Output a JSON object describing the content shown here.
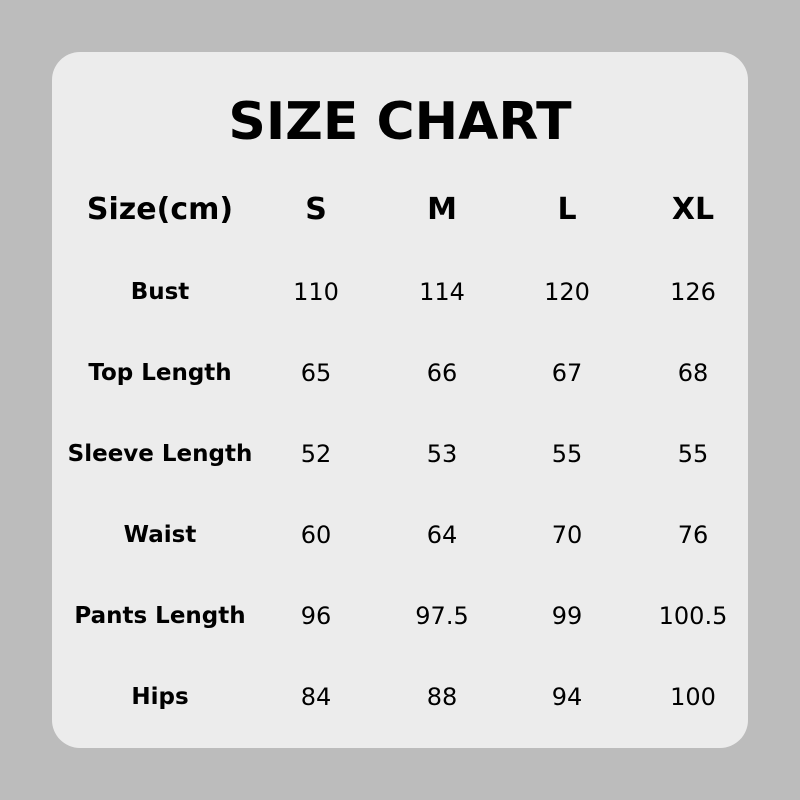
{
  "title": "SIZE CHART",
  "colors": {
    "background": "#bcbcbc",
    "card": "#ececec",
    "text": "#000000"
  },
  "table": {
    "headers": [
      "Size(cm)",
      "S",
      "M",
      "L",
      "XL"
    ],
    "rows": [
      {
        "label": "Bust",
        "values": [
          "110",
          "114",
          "120",
          "126"
        ]
      },
      {
        "label": "Top Length",
        "values": [
          "65",
          "66",
          "67",
          "68"
        ]
      },
      {
        "label": "Sleeve Length",
        "values": [
          "52",
          "53",
          "55",
          "55"
        ]
      },
      {
        "label": "Waist",
        "values": [
          "60",
          "64",
          "70",
          "76"
        ]
      },
      {
        "label": "Pants Length",
        "values": [
          "96",
          "97.5",
          "99",
          "100.5"
        ]
      },
      {
        "label": "Hips",
        "values": [
          "84",
          "88",
          "94",
          "100"
        ]
      }
    ]
  }
}
